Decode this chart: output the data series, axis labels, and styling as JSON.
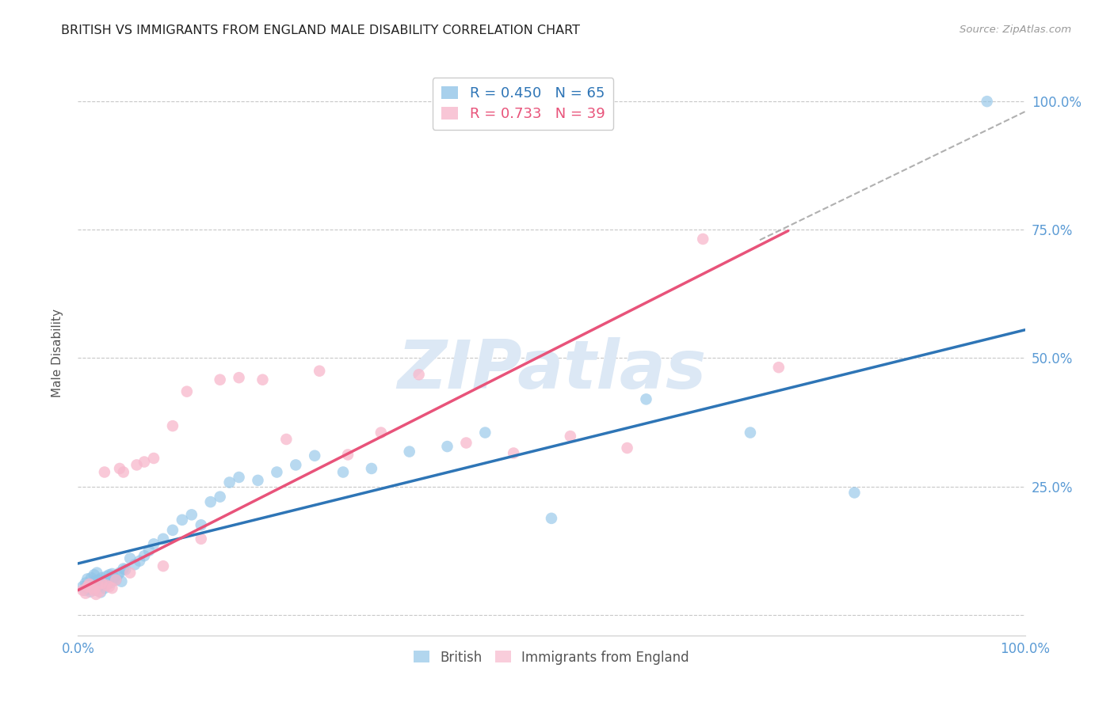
{
  "title": "BRITISH VS IMMIGRANTS FROM ENGLAND MALE DISABILITY CORRELATION CHART",
  "source": "Source: ZipAtlas.com",
  "ylabel": "Male Disability",
  "xlim": [
    0.0,
    1.0
  ],
  "ylim": [
    -0.04,
    1.06
  ],
  "title_color": "#222222",
  "source_color": "#888888",
  "axis_color": "#5b9bd5",
  "grid_color": "#c8c8c8",
  "british_color": "#92c5e8",
  "immigrant_color": "#f7b8cc",
  "british_line_color": "#2e75b6",
  "immigrant_line_color": "#e8537a",
  "dashed_line_color": "#b0b0b0",
  "watermark_text": "ZIPatlas",
  "watermark_color": "#dce8f5",
  "british_R": 0.45,
  "british_N": 65,
  "immigrant_R": 0.733,
  "immigrant_N": 39,
  "british_x": [
    0.005,
    0.007,
    0.008,
    0.009,
    0.01,
    0.011,
    0.012,
    0.013,
    0.014,
    0.015,
    0.016,
    0.017,
    0.018,
    0.019,
    0.02,
    0.021,
    0.022,
    0.023,
    0.024,
    0.025,
    0.026,
    0.027,
    0.028,
    0.03,
    0.031,
    0.032,
    0.033,
    0.035,
    0.036,
    0.038,
    0.04,
    0.042,
    0.044,
    0.046,
    0.048,
    0.05,
    0.055,
    0.06,
    0.065,
    0.07,
    0.075,
    0.08,
    0.09,
    0.1,
    0.11,
    0.12,
    0.13,
    0.14,
    0.15,
    0.16,
    0.17,
    0.19,
    0.21,
    0.23,
    0.25,
    0.28,
    0.31,
    0.35,
    0.39,
    0.43,
    0.5,
    0.6,
    0.71,
    0.82,
    0.96
  ],
  "british_y": [
    0.055,
    0.048,
    0.062,
    0.055,
    0.07,
    0.05,
    0.058,
    0.045,
    0.072,
    0.06,
    0.052,
    0.078,
    0.065,
    0.048,
    0.082,
    0.055,
    0.068,
    0.058,
    0.044,
    0.072,
    0.06,
    0.066,
    0.052,
    0.075,
    0.06,
    0.068,
    0.078,
    0.063,
    0.08,
    0.072,
    0.068,
    0.078,
    0.082,
    0.065,
    0.09,
    0.088,
    0.11,
    0.098,
    0.105,
    0.115,
    0.125,
    0.138,
    0.148,
    0.165,
    0.185,
    0.195,
    0.175,
    0.22,
    0.23,
    0.258,
    0.268,
    0.262,
    0.278,
    0.292,
    0.31,
    0.278,
    0.285,
    0.318,
    0.328,
    0.355,
    0.188,
    0.42,
    0.355,
    0.238,
    1.0
  ],
  "immigrant_x": [
    0.005,
    0.008,
    0.01,
    0.012,
    0.015,
    0.017,
    0.019,
    0.021,
    0.023,
    0.025,
    0.028,
    0.03,
    0.033,
    0.036,
    0.04,
    0.044,
    0.048,
    0.055,
    0.062,
    0.07,
    0.08,
    0.09,
    0.1,
    0.115,
    0.13,
    0.15,
    0.17,
    0.195,
    0.22,
    0.255,
    0.285,
    0.32,
    0.36,
    0.41,
    0.46,
    0.52,
    0.58,
    0.66,
    0.74
  ],
  "immigrant_y": [
    0.048,
    0.042,
    0.055,
    0.06,
    0.052,
    0.048,
    0.04,
    0.058,
    0.045,
    0.062,
    0.278,
    0.058,
    0.055,
    0.052,
    0.068,
    0.285,
    0.278,
    0.082,
    0.292,
    0.298,
    0.305,
    0.095,
    0.368,
    0.435,
    0.148,
    0.458,
    0.462,
    0.458,
    0.342,
    0.475,
    0.312,
    0.355,
    0.468,
    0.335,
    0.315,
    0.348,
    0.325,
    0.732,
    0.482
  ],
  "british_line_x": [
    0.0,
    1.0
  ],
  "british_line_y": [
    0.1,
    0.555
  ],
  "immigrant_line_x": [
    0.0,
    0.75
  ],
  "immigrant_line_y": [
    0.048,
    0.748
  ],
  "dashed_line_x": [
    0.72,
    1.0
  ],
  "dashed_line_y": [
    0.73,
    0.98
  ]
}
